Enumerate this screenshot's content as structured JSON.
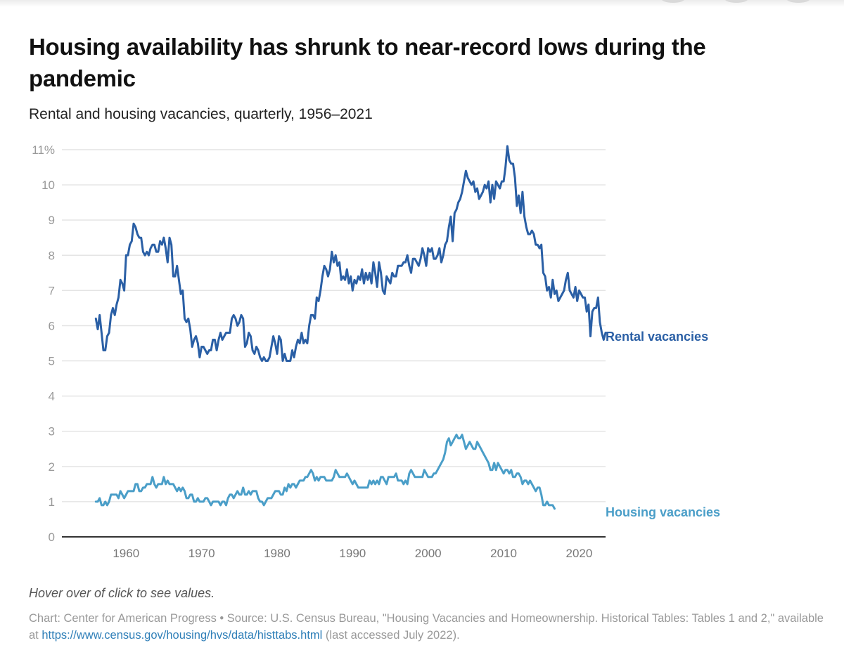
{
  "header": {
    "title": "Housing availability has shrunk to near-record lows during the pandemic",
    "subtitle": "Rental and housing vacancies, quarterly, 1956–2021"
  },
  "footer": {
    "hint": "Hover over of click to see values.",
    "source_prefix": "Chart: Center for American Progress • Source: U.S. Census Bureau, \"Housing Vacancies and Homeownership. Historical Tables: Tables 1 and 2,\" available at ",
    "source_link": "https://www.census.gov/housing/hvs/data/histtabs.html",
    "source_suffix": " (last accessed July 2022)."
  },
  "colors": {
    "rental": "#2a5fa5",
    "housing": "#4a9ec8",
    "grid": "#e4e4e4",
    "axis": "#333333"
  },
  "chart_data": {
    "type": "line",
    "title": "Housing availability has shrunk to near-record lows during the pandemic",
    "subtitle": "Rental and housing vacancies, quarterly, 1956–2021",
    "xlabel": "",
    "ylabel": "",
    "x_start": 1956,
    "x_step": 0.25,
    "xlim": [
      1951.5,
      2023.5
    ],
    "ylim": [
      0,
      11
    ],
    "yticks": [
      0,
      1,
      2,
      3,
      4,
      5,
      6,
      7,
      8,
      9,
      10,
      11
    ],
    "ytick_labels": [
      "0",
      "1",
      "2",
      "3",
      "4",
      "5",
      "6",
      "7",
      "8",
      "9",
      "10",
      "11%"
    ],
    "xticks": [
      1960,
      1970,
      1980,
      1990,
      2000,
      2010,
      2020
    ],
    "xtick_labels": [
      "1960",
      "1970",
      "1980",
      "1990",
      "2000",
      "2010",
      "2020"
    ],
    "grid": true,
    "legend": "direct-labels-right",
    "series": [
      {
        "name": "Rental vacancies",
        "key": "rental",
        "values": [
          6.2,
          5.9,
          6.3,
          5.8,
          5.3,
          5.3,
          5.7,
          5.8,
          6.3,
          6.5,
          6.3,
          6.6,
          6.8,
          7.3,
          7.2,
          7.0,
          8.0,
          8.0,
          8.3,
          8.4,
          8.9,
          8.8,
          8.6,
          8.5,
          8.5,
          8.1,
          8.0,
          8.1,
          8.0,
          8.2,
          8.3,
          8.3,
          8.1,
          8.1,
          8.4,
          8.3,
          8.5,
          8.2,
          7.8,
          8.5,
          8.3,
          7.4,
          7.4,
          7.7,
          7.3,
          6.9,
          7.0,
          6.2,
          6.1,
          6.2,
          5.9,
          5.4,
          5.6,
          5.7,
          5.5,
          5.1,
          5.4,
          5.4,
          5.3,
          5.2,
          5.3,
          5.3,
          5.6,
          5.6,
          5.3,
          5.6,
          5.8,
          5.6,
          5.7,
          5.8,
          5.8,
          5.8,
          6.2,
          6.3,
          6.2,
          6.0,
          6.1,
          6.3,
          6.2,
          5.4,
          5.5,
          5.8,
          5.7,
          5.3,
          5.2,
          5.4,
          5.3,
          5.1,
          5.0,
          5.1,
          5.0,
          5.0,
          5.1,
          5.4,
          5.7,
          5.5,
          5.2,
          5.7,
          5.6,
          5.0,
          5.2,
          5.0,
          5.0,
          5.0,
          5.3,
          5.1,
          5.4,
          5.6,
          5.5,
          5.8,
          5.5,
          5.6,
          5.5,
          6.0,
          6.3,
          6.3,
          6.2,
          6.8,
          6.7,
          7.0,
          7.4,
          7.7,
          7.6,
          7.4,
          7.6,
          8.1,
          7.8,
          8.0,
          7.7,
          7.8,
          7.3,
          7.4,
          7.3,
          7.6,
          7.2,
          7.4,
          7.0,
          7.3,
          7.2,
          7.4,
          7.3,
          7.6,
          7.2,
          7.5,
          7.3,
          7.5,
          7.2,
          7.8,
          7.5,
          7.1,
          7.8,
          7.5,
          7.0,
          6.9,
          7.4,
          7.3,
          7.2,
          7.5,
          7.4,
          7.4,
          7.7,
          7.7,
          7.7,
          7.8,
          7.8,
          8.0,
          7.7,
          7.5,
          7.9,
          7.9,
          7.8,
          7.7,
          7.9,
          8.2,
          8.0,
          7.7,
          8.2,
          8.1,
          8.2,
          7.9,
          7.9,
          8.0,
          8.2,
          7.8,
          8.0,
          8.3,
          8.4,
          8.8,
          9.1,
          8.4,
          9.2,
          9.3,
          9.5,
          9.6,
          9.8,
          10.1,
          10.4,
          10.2,
          10.1,
          10.0,
          10.1,
          9.8,
          9.9,
          9.6,
          9.7,
          9.8,
          10.0,
          9.9,
          10.1,
          9.5,
          10.0,
          9.6,
          10.1,
          10.0,
          9.9,
          10.1,
          10.1,
          10.5,
          11.1,
          10.7,
          10.6,
          10.6,
          10.2,
          9.4,
          9.7,
          9.2,
          9.8,
          9.1,
          8.8,
          8.6,
          8.6,
          8.7,
          8.6,
          8.3,
          8.3,
          8.2,
          8.3,
          7.5,
          7.4,
          7.0,
          7.1,
          6.8,
          7.3,
          6.9,
          7.0,
          6.7,
          6.8,
          6.9,
          7.0,
          7.3,
          7.5,
          7.0,
          6.9,
          6.8,
          7.1,
          6.7,
          7.0,
          6.9,
          6.8,
          6.8,
          6.4,
          6.6,
          5.7,
          6.4,
          6.5,
          6.5,
          6.8,
          6.1,
          5.8,
          5.6,
          5.8
        ]
      },
      {
        "name": "Housing vacancies",
        "key": "housing",
        "values": [
          1.0,
          1.0,
          1.1,
          0.9,
          0.9,
          1.0,
          0.9,
          1.0,
          1.2,
          1.2,
          1.2,
          1.2,
          1.1,
          1.3,
          1.2,
          1.1,
          1.2,
          1.3,
          1.3,
          1.3,
          1.3,
          1.5,
          1.5,
          1.3,
          1.3,
          1.4,
          1.4,
          1.5,
          1.5,
          1.5,
          1.7,
          1.5,
          1.4,
          1.5,
          1.5,
          1.5,
          1.7,
          1.5,
          1.6,
          1.5,
          1.5,
          1.5,
          1.4,
          1.3,
          1.4,
          1.3,
          1.4,
          1.3,
          1.1,
          1.1,
          1.2,
          1.2,
          1.0,
          1.0,
          1.1,
          1.0,
          1.0,
          1.0,
          1.1,
          1.1,
          1.0,
          0.9,
          1.0,
          1.0,
          1.0,
          1.0,
          0.9,
          1.0,
          1.0,
          0.9,
          1.1,
          1.2,
          1.2,
          1.1,
          1.2,
          1.3,
          1.2,
          1.2,
          1.4,
          1.2,
          1.2,
          1.3,
          1.2,
          1.3,
          1.3,
          1.3,
          1.1,
          1.0,
          1.0,
          0.9,
          1.0,
          1.1,
          1.1,
          1.1,
          1.2,
          1.3,
          1.3,
          1.3,
          1.2,
          1.2,
          1.4,
          1.3,
          1.5,
          1.4,
          1.5,
          1.5,
          1.4,
          1.5,
          1.6,
          1.6,
          1.6,
          1.7,
          1.7,
          1.8,
          1.9,
          1.8,
          1.6,
          1.7,
          1.6,
          1.7,
          1.7,
          1.7,
          1.6,
          1.6,
          1.6,
          1.6,
          1.7,
          1.9,
          1.8,
          1.7,
          1.7,
          1.7,
          1.7,
          1.8,
          1.7,
          1.6,
          1.5,
          1.6,
          1.5,
          1.4,
          1.4,
          1.4,
          1.4,
          1.4,
          1.4,
          1.6,
          1.5,
          1.6,
          1.5,
          1.6,
          1.5,
          1.7,
          1.7,
          1.6,
          1.5,
          1.7,
          1.7,
          1.7,
          1.7,
          1.8,
          1.6,
          1.6,
          1.6,
          1.5,
          1.6,
          1.5,
          1.8,
          1.9,
          1.8,
          1.7,
          1.7,
          1.7,
          1.7,
          1.7,
          1.9,
          1.8,
          1.7,
          1.7,
          1.7,
          1.8,
          1.8,
          1.9,
          2.0,
          2.1,
          2.2,
          2.4,
          2.7,
          2.8,
          2.6,
          2.7,
          2.8,
          2.9,
          2.8,
          2.8,
          2.9,
          2.7,
          2.5,
          2.6,
          2.7,
          2.6,
          2.5,
          2.5,
          2.7,
          2.6,
          2.5,
          2.4,
          2.3,
          2.2,
          2.1,
          1.9,
          1.9,
          2.1,
          1.9,
          2.1,
          2.0,
          1.9,
          1.8,
          1.9,
          1.9,
          1.8,
          1.9,
          1.7,
          1.7,
          1.8,
          1.8,
          1.7,
          1.5,
          1.6,
          1.6,
          1.5,
          1.6,
          1.5,
          1.4,
          1.3,
          1.4,
          1.4,
          1.2,
          0.9,
          0.9,
          1.0,
          0.9,
          0.9,
          0.9,
          0.8
        ]
      }
    ]
  }
}
